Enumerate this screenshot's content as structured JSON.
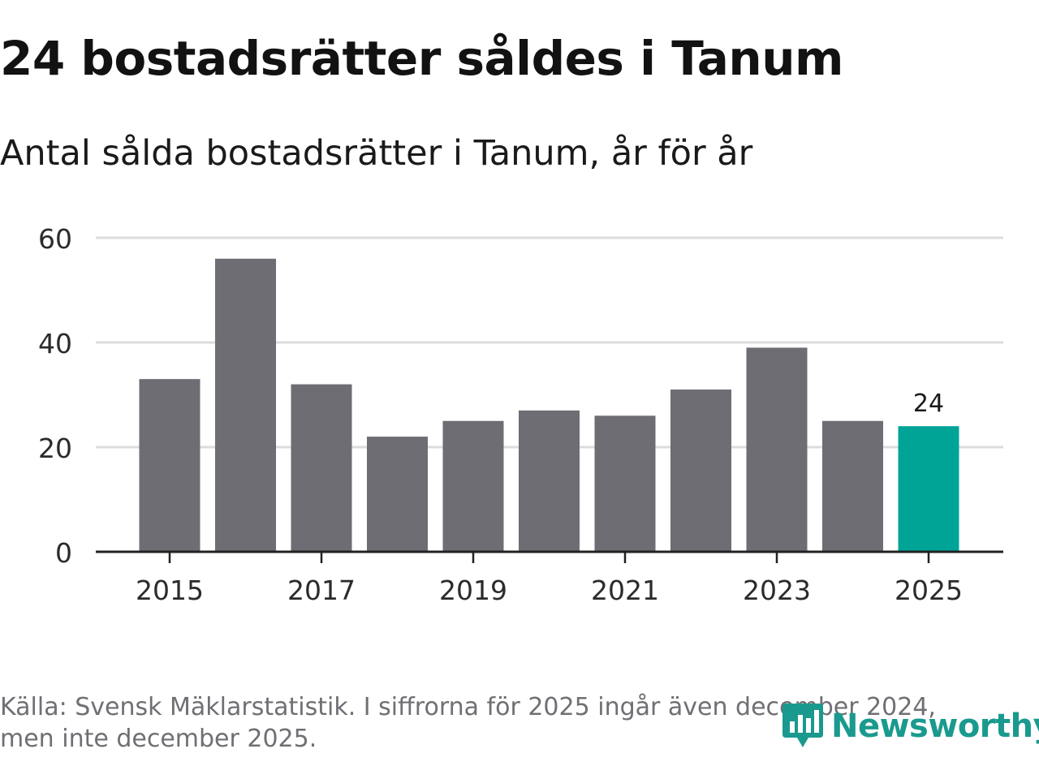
{
  "title": "24 bostadsrätter såldes i Tanum",
  "subtitle": "Antal sålda bostadsrätter i Tanum, år för år",
  "source": {
    "line1": "Källa: Svensk Mäklarstatistik. I siffrorna för 2025 ingår även december 2024,",
    "line2": "men inte december 2025."
  },
  "logo": {
    "text": "Newsworthy",
    "icon": "newsworthy-logo-icon"
  },
  "colors": {
    "bar": "#6e6d73",
    "highlight": "#00a497",
    "grid": "#dcdcdc",
    "axis": "#222222",
    "text": "#2b2b2b"
  },
  "chart_data": {
    "type": "bar",
    "title": "24 bostadsrätter såldes i Tanum",
    "subtitle": "Antal sålda bostadsrätter i Tanum, år för år",
    "xlabel": "",
    "ylabel": "",
    "ylim": [
      0,
      60
    ],
    "yticks": [
      0,
      20,
      40,
      60
    ],
    "categories": [
      "2015",
      "2016",
      "2017",
      "2018",
      "2019",
      "2020",
      "2021",
      "2022",
      "2023",
      "2024",
      "2025"
    ],
    "values": [
      33,
      56,
      32,
      22,
      25,
      27,
      26,
      31,
      39,
      25,
      24
    ],
    "xtick_labels": [
      "2015",
      "2017",
      "2019",
      "2021",
      "2023",
      "2025"
    ],
    "highlight_category": "2025",
    "data_labels": [
      {
        "category": "2025",
        "text": "24"
      }
    ],
    "grid": true,
    "legend": "none"
  }
}
